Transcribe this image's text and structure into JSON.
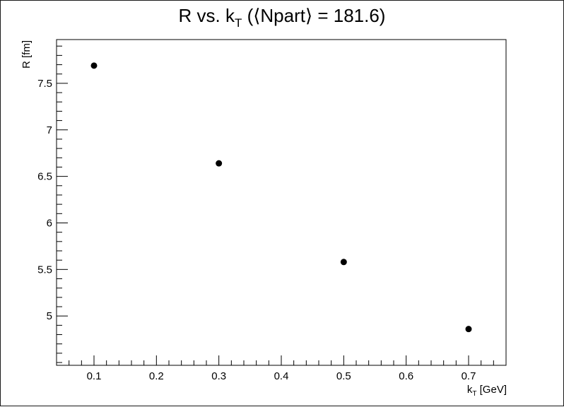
{
  "chart_data": {
    "type": "scatter",
    "title": "R vs. k",
    "title_sub": "T",
    "title_suffix": " (⟨Npart⟩ = 181.6)",
    "xlabel": "k",
    "xlabel_sub": "T",
    "xlabel_suffix": " [GeV]",
    "ylabel": "R [fm]",
    "xlim": [
      0.04,
      0.76
    ],
    "ylim": [
      4.47,
      7.97
    ],
    "x_major_ticks": [
      0.1,
      0.2,
      0.3,
      0.4,
      0.5,
      0.6,
      0.7
    ],
    "x_tick_labels": [
      "0.1",
      "0.2",
      "0.3",
      "0.4",
      "0.5",
      "0.6",
      "0.7"
    ],
    "y_major_ticks": [
      5,
      5.5,
      6,
      6.5,
      7,
      7.5
    ],
    "y_tick_labels": [
      "5",
      "5.5",
      "6",
      "6.5",
      "7",
      "7.5"
    ],
    "grid": false,
    "legend": "none",
    "marker_color": "#000000",
    "points": [
      {
        "x": 0.1,
        "y": 7.69
      },
      {
        "x": 0.3,
        "y": 6.64
      },
      {
        "x": 0.5,
        "y": 5.58
      },
      {
        "x": 0.7,
        "y": 4.86
      }
    ]
  }
}
